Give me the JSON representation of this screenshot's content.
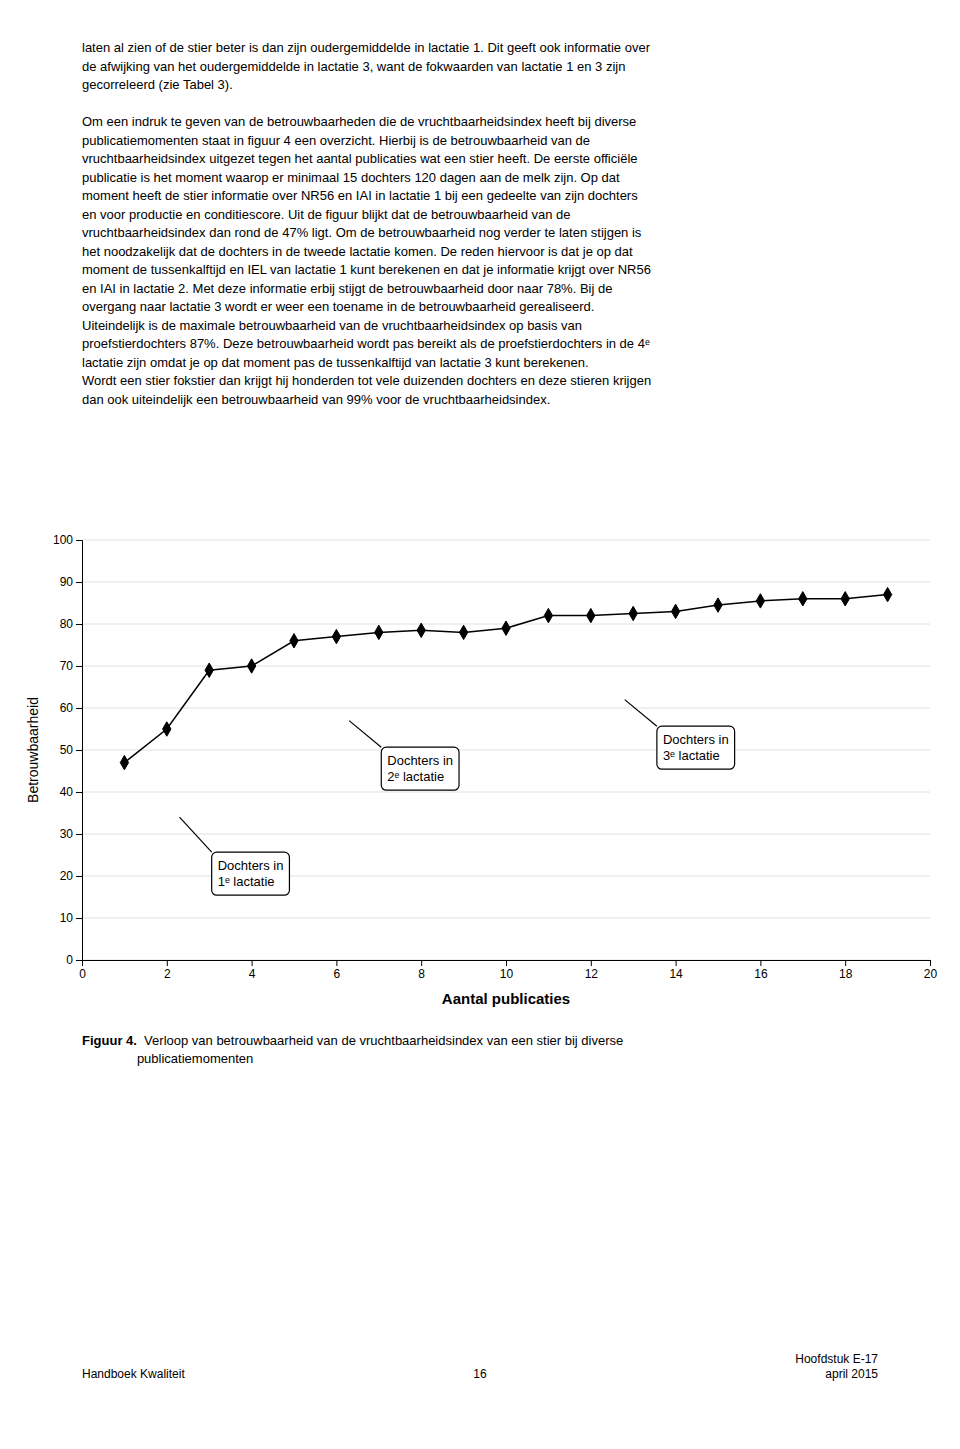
{
  "chart_data": {
    "type": "line",
    "xlabel": "Aantal publicaties",
    "ylabel": "Betrouwbaarheid",
    "x": [
      1,
      2,
      3,
      4,
      5,
      6,
      7,
      8,
      9,
      10,
      11,
      12,
      13,
      14,
      15,
      16,
      17,
      18,
      19
    ],
    "values": [
      47,
      55,
      69,
      70,
      76,
      77,
      78,
      78.5,
      78,
      79,
      82,
      82,
      82.5,
      83,
      84.5,
      85.5,
      86,
      86,
      87
    ],
    "color": "#000000",
    "marker": "diamond",
    "line_style": "solid",
    "xlim": [
      0,
      20
    ],
    "ylim": [
      0,
      100
    ],
    "xticks": [
      0,
      2,
      4,
      6,
      8,
      10,
      12,
      14,
      16,
      18,
      20
    ],
    "yticks": [
      0,
      10,
      20,
      30,
      40,
      50,
      60,
      70,
      80,
      90,
      100
    ],
    "grid": true,
    "annotations": [
      {
        "text": "Dochters in\n1ᵉ lactatie",
        "x": 2.3,
        "y": 34,
        "text_x": 3.2,
        "text_y": 24
      },
      {
        "text": "Dochters in\n2ᵉ lactatie",
        "x": 6.3,
        "y": 57,
        "text_x": 7.2,
        "text_y": 49
      },
      {
        "text": "Dochters in\n3ᵉ lactatie",
        "x": 12.8,
        "y": 62,
        "text_x": 13.7,
        "text_y": 54
      }
    ]
  },
  "text_block": [
    [
      "laten al zien of de stier beter is dan zijn oudergemiddelde in lactatie 1. Dit geeft ook informatie over",
      "de afwijking van het oudergemiddelde in lactatie 3, want de fokwaarden van lactatie 1 en 3 zijn",
      "gecorreleerd (zie Tabel 3)."
    ],
    [
      "Om een indruk te geven van de betrouwbaarheden die de vruchtbaarheidsindex heeft bij diverse",
      "publicatiemomenten staat in figuur 4 een overzicht. Hierbij is de betrouwbaarheid van de",
      "vruchtbaarheidsindex uitgezet tegen het aantal publicaties wat een stier heeft. De eerste officiële",
      "publicatie is het moment waarop er minimaal 15 dochters 120 dagen aan de melk zijn. Op dat",
      "moment heeft de stier informatie over NR56 en IAI in lactatie 1 bij een gedeelte van zijn dochters",
      "en voor productie en conditiescore. Uit de figuur blijkt dat de betrouwbaarheid van de",
      "vruchtbaarheidsindex dan rond de 47% ligt. Om de betrouwbaarheid nog verder te laten stijgen is",
      "het noodzakelijk dat de dochters in de tweede lactatie komen. De reden hiervoor is dat je op dat",
      "moment de tussenkalftijd en IEL van lactatie 1 kunt berekenen en dat je informatie krijgt over NR56",
      "en IAI in lactatie 2. Met deze informatie erbij stijgt de betrouwbaarheid door naar 78%. Bij de",
      "overgang naar lactatie 3 wordt er weer een toename in de betrouwbaarheid gerealiseerd.",
      "Uiteindelijk is de maximale betrouwbaarheid van de vruchtbaarheidsindex op basis van",
      "proefstierdochters 87%. Deze betrouwbaarheid wordt pas bereikt als de proefstierdochters in de 4ᵉ",
      "lactatie zijn omdat je op dat moment pas de tussenkalftijd van lactatie 3 kunt berekenen.",
      "Wordt een stier fokstier dan krijgt hij honderden tot vele duizenden dochters en deze stieren krijgen",
      "dan ook uiteindelijk een betrouwbaarheid van 99% voor de vruchtbaarheidsindex."
    ]
  ],
  "caption": {
    "bold": "Figuur 4.",
    "text": "  Verloop van betrouwbaarheid van de vruchtbaarheidsindex van een stier bij diverse\npublicatiemomenten"
  },
  "footer": {
    "left": "Handboek Kwaliteit",
    "center": "16",
    "right": "Hoofdstuk E-17\napril 2015"
  }
}
